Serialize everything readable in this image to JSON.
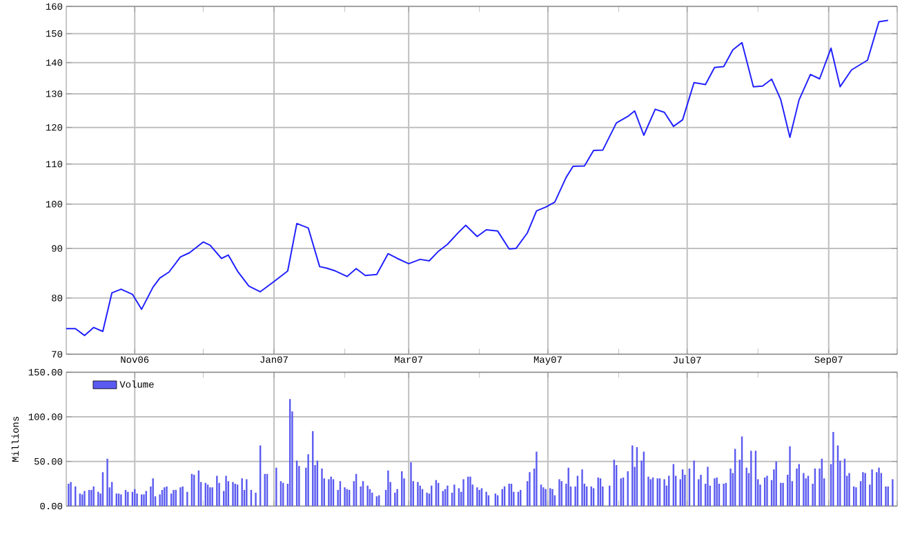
{
  "chart_data": [
    {
      "type": "line",
      "color": "#2020ff",
      "log": "y",
      "grid": true,
      "xlim": [
        "2006-10-02",
        "2007-10-01"
      ],
      "xticks": [
        {
          "value": "2006-11-01",
          "label": "Nov06"
        },
        {
          "value": "2006-12-01",
          "label": null
        },
        {
          "value": "2007-01-01",
          "label": "Jan07"
        },
        {
          "value": "2007-02-01",
          "label": null
        },
        {
          "value": "2007-03-01",
          "label": "Mar07"
        },
        {
          "value": "2007-04-01",
          "label": null
        },
        {
          "value": "2007-05-01",
          "label": "May07"
        },
        {
          "value": "2007-06-01",
          "label": null
        },
        {
          "value": "2007-07-01",
          "label": "Jul07"
        },
        {
          "value": "2007-08-01",
          "label": null
        },
        {
          "value": "2007-09-01",
          "label": "Sep07"
        },
        {
          "value": "2007-10-01",
          "label": null
        }
      ],
      "ylim": [
        70,
        160
      ],
      "yticks": [
        70,
        80,
        90,
        100,
        110,
        120,
        130,
        140,
        150,
        160
      ],
      "x": [
        "2006-10-02",
        "2006-10-06",
        "2006-10-10",
        "2006-10-14",
        "2006-10-18",
        "2006-10-22",
        "2006-10-26",
        "2006-10-31",
        "2006-11-04",
        "2006-11-09",
        "2006-11-12",
        "2006-11-16",
        "2006-11-21",
        "2006-11-25",
        "2006-12-01",
        "2006-12-04",
        "2006-12-09",
        "2006-12-12",
        "2006-12-16",
        "2006-12-21",
        "2006-12-26",
        "2007-01-01",
        "2007-01-07",
        "2007-01-11",
        "2007-01-16",
        "2007-01-21",
        "2007-01-24",
        "2007-01-28",
        "2007-02-02",
        "2007-02-06",
        "2007-02-10",
        "2007-02-15",
        "2007-02-20",
        "2007-02-24",
        "2007-03-01",
        "2007-03-06",
        "2007-03-10",
        "2007-03-14",
        "2007-03-18",
        "2007-03-23",
        "2007-03-26",
        "2007-03-31",
        "2007-04-04",
        "2007-04-09",
        "2007-04-14",
        "2007-04-17",
        "2007-04-22",
        "2007-04-26",
        "2007-04-30",
        "2007-05-04",
        "2007-05-09",
        "2007-05-12",
        "2007-05-17",
        "2007-05-21",
        "2007-05-25",
        "2007-05-31",
        "2007-06-05",
        "2007-06-08",
        "2007-06-12",
        "2007-06-17",
        "2007-06-21",
        "2007-06-25",
        "2007-06-29",
        "2007-07-04",
        "2007-07-09",
        "2007-07-13",
        "2007-07-17",
        "2007-07-21",
        "2007-07-25",
        "2007-07-30",
        "2007-08-03",
        "2007-08-07",
        "2007-08-11",
        "2007-08-15",
        "2007-08-19",
        "2007-08-24",
        "2007-08-28",
        "2007-09-02",
        "2007-09-06",
        "2007-09-11",
        "2007-09-18",
        "2007-09-23",
        "2007-09-27"
      ],
      "values": [
        74.4,
        74.4,
        73.2,
        74.6,
        73.9,
        81.0,
        81.7,
        80.7,
        77.9,
        82.1,
        83.9,
        85.1,
        88.2,
        89.1,
        91.4,
        90.7,
        87.9,
        88.6,
        85.3,
        82.3,
        81.2,
        83.2,
        85.3,
        95.5,
        94.5,
        86.2,
        85.9,
        85.3,
        84.2,
        85.8,
        84.4,
        84.6,
        88.9,
        87.9,
        86.8,
        87.7,
        87.4,
        89.4,
        90.9,
        93.6,
        95.1,
        92.6,
        94.1,
        93.8,
        89.9,
        90.0,
        93.4,
        98.4,
        99.3,
        100.5,
        106.6,
        109.4,
        109.5,
        113.6,
        113.7,
        121.3,
        123.2,
        124.8,
        117.8,
        125.3,
        124.4,
        120.3,
        122.2,
        133.5,
        132.9,
        138.4,
        138.7,
        144.3,
        146.8,
        132.2,
        132.4,
        134.6,
        128.2,
        117.2,
        128.1,
        136.1,
        134.7,
        144.9,
        132.2,
        137.6,
        140.8,
        154.3,
        154.8
      ]
    },
    {
      "type": "bar",
      "ylabel": "Millions",
      "grid": true,
      "legend": "top left",
      "tick_labels": "y",
      "xlim": [
        "2006-10-02",
        "2007-10-01"
      ],
      "xticks": [
        "2006-11-01",
        {
          "value": "2006-12-01",
          "label": null
        },
        "2007-01-01",
        {
          "value": "2007-02-01",
          "label": null
        },
        "2007-03-01",
        {
          "value": "2007-04-01",
          "label": null
        },
        "2007-05-01",
        {
          "value": "2007-06-01",
          "label": null
        },
        "2007-07-01",
        {
          "value": "2007-08-01",
          "label": null
        },
        "2007-09-01",
        {
          "value": "2007-10-01",
          "label": null
        }
      ],
      "ylim": [
        0,
        150
      ],
      "yticks": [
        {
          "value": 0,
          "label": "0.00"
        },
        {
          "value": 50,
          "label": "50.00"
        },
        {
          "value": 100,
          "label": "100.00"
        },
        {
          "value": 150,
          "label": "150.00"
        }
      ],
      "series": [
        {
          "name": "Volume",
          "color": "#5a5af0",
          "x": [
            "2006-10-03",
            "2006-10-04",
            "2006-10-06",
            "2006-10-08",
            "2006-10-09",
            "2006-10-10",
            "2006-10-12",
            "2006-10-13",
            "2006-10-14",
            "2006-10-16",
            "2006-10-17",
            "2006-10-18",
            "2006-10-20",
            "2006-10-21",
            "2006-10-22",
            "2006-10-24",
            "2006-10-25",
            "2006-10-26",
            "2006-10-28",
            "2006-10-29",
            "2006-10-31",
            "2006-11-01",
            "2006-11-02",
            "2006-11-04",
            "2006-11-05",
            "2006-11-06",
            "2006-11-08",
            "2006-11-09",
            "2006-11-10",
            "2006-11-12",
            "2006-11-13",
            "2006-11-14",
            "2006-11-15",
            "2006-11-17",
            "2006-11-18",
            "2006-11-19",
            "2006-11-21",
            "2006-11-22",
            "2006-11-24",
            "2006-11-26",
            "2006-11-27",
            "2006-11-29",
            "2006-11-30",
            "2006-12-02",
            "2006-12-03",
            "2006-12-04",
            "2006-12-05",
            "2006-12-07",
            "2006-12-08",
            "2006-12-10",
            "2006-12-11",
            "2006-12-12",
            "2006-12-14",
            "2006-12-15",
            "2006-12-16",
            "2006-12-18",
            "2006-12-19",
            "2006-12-20",
            "2006-12-22",
            "2006-12-24",
            "2006-12-26",
            "2006-12-28",
            "2006-12-29",
            "2007-01-02",
            "2007-01-04",
            "2007-01-05",
            "2007-01-07",
            "2007-01-08",
            "2007-01-09",
            "2007-01-11",
            "2007-01-12",
            "2007-01-15",
            "2007-01-16",
            "2007-01-18",
            "2007-01-19",
            "2007-01-20",
            "2007-01-22",
            "2007-01-23",
            "2007-01-25",
            "2007-01-26",
            "2007-01-27",
            "2007-01-29",
            "2007-01-30",
            "2007-02-01",
            "2007-02-02",
            "2007-02-03",
            "2007-02-05",
            "2007-02-06",
            "2007-02-08",
            "2007-02-09",
            "2007-02-11",
            "2007-02-12",
            "2007-02-13",
            "2007-02-15",
            "2007-02-16",
            "2007-02-19",
            "2007-02-20",
            "2007-02-21",
            "2007-02-23",
            "2007-02-24",
            "2007-02-26",
            "2007-02-27",
            "2007-03-02",
            "2007-03-03",
            "2007-03-05",
            "2007-03-06",
            "2007-03-07",
            "2007-03-09",
            "2007-03-10",
            "2007-03-11",
            "2007-03-13",
            "2007-03-14",
            "2007-03-16",
            "2007-03-17",
            "2007-03-18",
            "2007-03-20",
            "2007-03-21",
            "2007-03-23",
            "2007-03-24",
            "2007-03-25",
            "2007-03-27",
            "2007-03-28",
            "2007-03-29",
            "2007-03-31",
            "2007-04-01",
            "2007-04-02",
            "2007-04-04",
            "2007-04-05",
            "2007-04-08",
            "2007-04-09",
            "2007-04-11",
            "2007-04-12",
            "2007-04-14",
            "2007-04-15",
            "2007-04-16",
            "2007-04-18",
            "2007-04-19",
            "2007-04-22",
            "2007-04-23",
            "2007-04-25",
            "2007-04-26",
            "2007-04-28",
            "2007-04-29",
            "2007-04-30",
            "2007-05-02",
            "2007-05-03",
            "2007-05-04",
            "2007-05-06",
            "2007-05-07",
            "2007-05-09",
            "2007-05-10",
            "2007-05-11",
            "2007-05-13",
            "2007-05-14",
            "2007-05-16",
            "2007-05-17",
            "2007-05-18",
            "2007-05-20",
            "2007-05-21",
            "2007-05-23",
            "2007-05-24",
            "2007-05-25",
            "2007-05-28",
            "2007-05-30",
            "2007-05-31",
            "2007-06-02",
            "2007-06-03",
            "2007-06-05",
            "2007-06-07",
            "2007-06-08",
            "2007-06-09",
            "2007-06-11",
            "2007-06-12",
            "2007-06-14",
            "2007-06-15",
            "2007-06-16",
            "2007-06-18",
            "2007-06-19",
            "2007-06-21",
            "2007-06-22",
            "2007-06-23",
            "2007-06-25",
            "2007-06-26",
            "2007-06-28",
            "2007-06-29",
            "2007-06-30",
            "2007-07-02",
            "2007-07-04",
            "2007-07-06",
            "2007-07-07",
            "2007-07-09",
            "2007-07-10",
            "2007-07-11",
            "2007-07-13",
            "2007-07-14",
            "2007-07-15",
            "2007-07-17",
            "2007-07-18",
            "2007-07-20",
            "2007-07-21",
            "2007-07-22",
            "2007-07-24",
            "2007-07-25",
            "2007-07-27",
            "2007-07-28",
            "2007-07-29",
            "2007-07-31",
            "2007-08-01",
            "2007-08-02",
            "2007-08-04",
            "2007-08-05",
            "2007-08-07",
            "2007-08-08",
            "2007-08-09",
            "2007-08-11",
            "2007-08-12",
            "2007-08-14",
            "2007-08-15",
            "2007-08-16",
            "2007-08-18",
            "2007-08-19",
            "2007-08-21",
            "2007-08-22",
            "2007-08-23",
            "2007-08-25",
            "2007-08-26",
            "2007-08-28",
            "2007-08-29",
            "2007-08-30",
            "2007-09-02",
            "2007-09-03",
            "2007-09-05",
            "2007-09-06",
            "2007-09-08",
            "2007-09-09",
            "2007-09-10",
            "2007-09-12",
            "2007-09-13",
            "2007-09-15",
            "2007-09-16",
            "2007-09-17",
            "2007-09-19",
            "2007-09-20",
            "2007-09-22",
            "2007-09-23",
            "2007-09-24",
            "2007-09-26",
            "2007-09-27",
            "2007-09-29"
          ],
          "values": [
            25,
            27,
            22,
            14,
            13,
            17,
            18,
            18,
            22,
            16,
            14,
            38,
            53,
            21,
            27,
            14,
            14,
            13,
            18,
            16,
            16,
            19,
            14,
            13,
            13,
            17,
            22,
            31,
            11,
            13,
            18,
            21,
            22,
            14,
            18,
            18,
            21,
            22,
            16,
            36,
            35,
            40,
            27,
            26,
            24,
            21,
            21,
            34,
            26,
            17,
            34,
            28,
            27,
            25,
            24,
            31,
            18,
            30,
            18,
            15,
            68,
            36,
            36,
            43,
            28,
            26,
            25,
            120,
            106,
            51,
            45,
            43,
            58,
            84,
            46,
            51,
            42,
            31,
            30,
            33,
            30,
            18,
            28,
            21,
            19,
            18,
            28,
            36,
            22,
            28,
            23,
            19,
            15,
            11,
            12,
            18,
            40,
            27,
            15,
            19,
            39,
            31,
            49,
            28,
            27,
            23,
            19,
            15,
            14,
            23,
            29,
            26,
            17,
            19,
            23,
            15,
            24,
            20,
            16,
            30,
            33,
            33,
            24,
            21,
            18,
            20,
            16,
            12,
            14,
            12,
            19,
            22,
            25,
            25,
            16,
            16,
            18,
            28,
            38,
            42,
            61,
            24,
            21,
            19,
            20,
            19,
            12,
            30,
            28,
            25,
            43,
            22,
            22,
            34,
            41,
            25,
            22,
            22,
            20,
            32,
            31,
            22,
            23,
            52,
            46,
            31,
            32,
            39,
            68,
            44,
            66,
            51,
            61,
            33,
            30,
            32,
            31,
            31,
            30,
            23,
            34,
            47,
            34,
            30,
            41,
            35,
            42,
            51,
            30,
            35,
            25,
            44,
            23,
            31,
            32,
            25,
            25,
            26,
            42,
            37,
            64,
            52,
            78,
            43,
            37,
            62,
            62,
            30,
            24,
            32,
            34,
            29,
            41,
            50,
            26,
            26,
            35,
            67,
            28,
            42,
            47,
            37,
            31,
            34,
            25,
            42,
            42,
            53,
            31,
            47,
            83,
            68,
            51,
            53,
            34,
            37,
            22,
            21,
            28,
            38,
            37,
            24,
            41,
            38,
            43,
            37,
            22,
            22,
            30
          ]
        }
      ]
    }
  ]
}
